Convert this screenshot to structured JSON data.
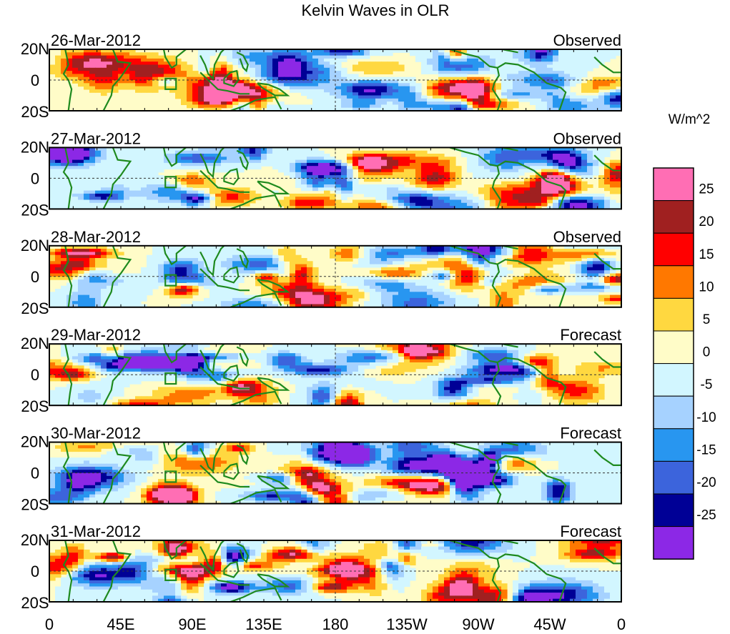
{
  "title": "Kelvin Waves in OLR",
  "panels": [
    {
      "date": "26-Mar-2012",
      "status": "Observed"
    },
    {
      "date": "27-Mar-2012",
      "status": "Observed"
    },
    {
      "date": "28-Mar-2012",
      "status": "Observed"
    },
    {
      "date": "29-Mar-2012",
      "status": "Forecast"
    },
    {
      "date": "30-Mar-2012",
      "status": "Forecast"
    },
    {
      "date": "31-Mar-2012",
      "status": "Forecast"
    }
  ],
  "lat_ticks": [
    "20N",
    "0",
    "20S"
  ],
  "lon_ticks": [
    "0",
    "45E",
    "90E",
    "135E",
    "180",
    "135W",
    "90W",
    "45W",
    "0"
  ],
  "colorbar": {
    "units": "W/m^2",
    "tick_labels": [
      "25",
      "20",
      "15",
      "10",
      "5",
      "0",
      "-5",
      "-10",
      "-15",
      "-20",
      "-25"
    ],
    "bins_top_to_bottom": [
      "#ff6eb4",
      "#a02020",
      "#ff0000",
      "#ff7800",
      "#ffd840",
      "#fffcc8",
      "#d2f6ff",
      "#a6d2ff",
      "#2896f0",
      "#3c64dc",
      "#000096",
      "#8c28e6"
    ]
  },
  "map": {
    "lon_range": [
      0,
      360
    ],
    "lat_range": [
      -20,
      20
    ],
    "coastline_color": "#1e8a1e",
    "reference_line_style": "dashed"
  }
}
